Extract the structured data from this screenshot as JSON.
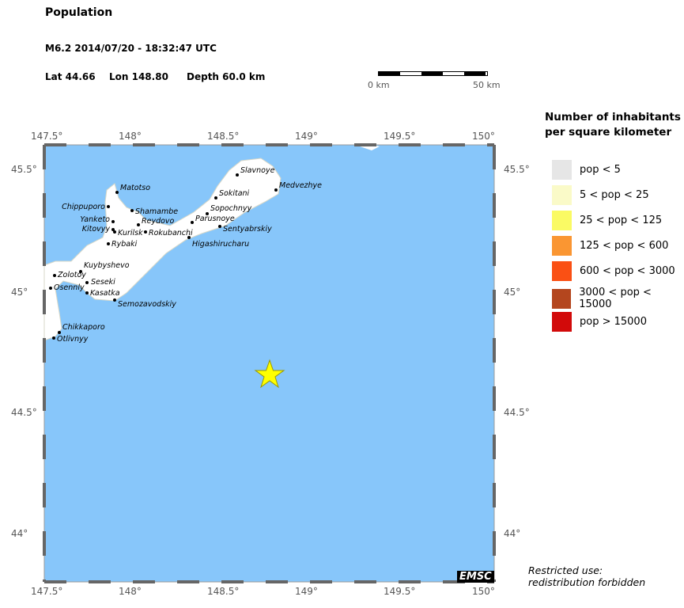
{
  "title": "Population",
  "event": "M6.2  2014/07/20 - 18:32:47 UTC",
  "lat_label": "Lat 44.66",
  "lon_label": "Lon 148.80",
  "depth_label": "Depth  60.0 km",
  "scale": {
    "start": "0 km",
    "end": "50 km"
  },
  "axes": {
    "lon_ticks": [
      "147.5°",
      "148°",
      "148.5°",
      "149°",
      "149.5°",
      "150°"
    ],
    "lat_ticks": [
      "45.5°",
      "45°",
      "44.5°",
      "44°"
    ]
  },
  "legend": {
    "title_line1": "Number of inhabitants",
    "title_line2": "per square kilometer",
    "items": [
      {
        "label": "pop < 5",
        "color": "#e6e6e6"
      },
      {
        "label": "5 < pop < 25",
        "color": "#fafac8"
      },
      {
        "label": "25 < pop < 125",
        "color": "#fafa64"
      },
      {
        "label": "125 < pop < 600",
        "color": "#fa9632"
      },
      {
        "label": "600 < pop < 3000",
        "color": "#fa5014"
      },
      {
        "label": "3000 < pop < 15000",
        "color": "#b4461e"
      },
      {
        "label": "pop > 15000",
        "color": "#d20a0a"
      }
    ]
  },
  "cities": [
    "Slavnoye",
    "Medvezhye",
    "Sokitani",
    "Matotso",
    "Chippuporo",
    "Shamambe",
    "Yanketo",
    "Sopochnyy",
    "Parusnoye",
    "Sentyabrskiy",
    "Kitovyy",
    "Reydovo",
    "Kurilsk",
    "Rokubanchi",
    "Higashirucharu",
    "Rybaki",
    "Kuybyshevo",
    "Zolotoy",
    "Seseki",
    "Osennly",
    "Kasatka",
    "Semozavodskiy",
    "Chikkaporo",
    "Otlivnyy"
  ],
  "epicenter_icon": "star-icon",
  "colors": {
    "sea": "#87c6fa",
    "land": "#ffffff",
    "epicenter": "#ffff00"
  },
  "logo": "EMSC",
  "restriction_line1": "Restricted use:",
  "restriction_line2": "redistribution forbidden"
}
